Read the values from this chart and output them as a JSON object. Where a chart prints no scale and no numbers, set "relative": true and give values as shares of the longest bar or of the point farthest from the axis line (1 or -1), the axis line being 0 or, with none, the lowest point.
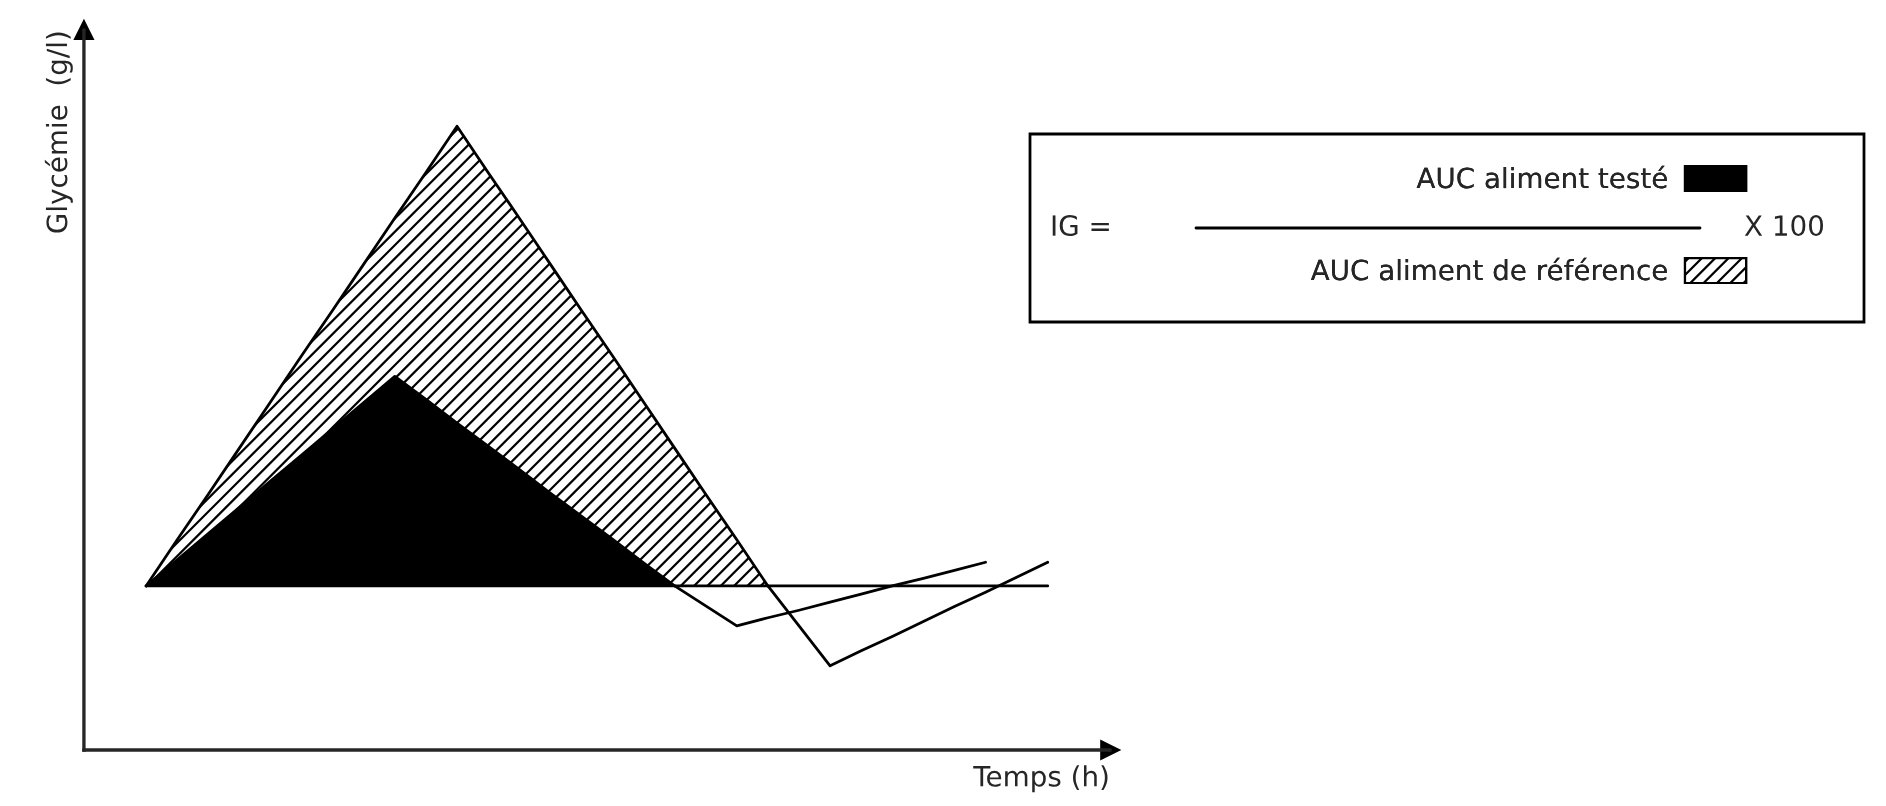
{
  "chart_data": {
    "type": "line",
    "relative": true,
    "xlabel": "Temps (h)",
    "ylabel": "Glycémie  (g/l)",
    "legend": "right",
    "categories": [
      null,
      null,
      null,
      null,
      null,
      null,
      null,
      null,
      null,
      null,
      null,
      null,
      null,
      null,
      null,
      null,
      null,
      null,
      null,
      null,
      null,
      null,
      null,
      null,
      null,
      null,
      null,
      null,
      null,
      null
    ],
    "annotations": [
      "IG =",
      "X 100"
    ],
    "series": [
      {
        "name": "AUC aliment de référence",
        "type": "area",
        "color": "#ffffff",
        "values": [
          0.263,
          0.337,
          0.41,
          0.484,
          0.558,
          0.632,
          0.705,
          0.779,
          0.853,
          0.926,
          1,
          0.926,
          0.853,
          0.779,
          0.705,
          0.632,
          0.558,
          0.484,
          0.41,
          0.337,
          0.263,
          null,
          null,
          null,
          null,
          null,
          null,
          null,
          null,
          null
        ]
      },
      {
        "name": "AUC aliment testé",
        "type": "area",
        "color": "#000000",
        "values": [
          0.263,
          0.305,
          0.347,
          0.389,
          0.431,
          0.473,
          0.515,
          0.557,
          0.599,
          0.562,
          0.524,
          0.487,
          0.45,
          0.412,
          0.375,
          0.338,
          0.3,
          0.263,
          null,
          null,
          null,
          null,
          null,
          null,
          null,
          null,
          null,
          null,
          null,
          null
        ]
      },
      {
        "color": "#000000",
        "values": [
          null,
          null,
          null,
          null,
          null,
          null,
          null,
          null,
          null,
          null,
          null,
          null,
          null,
          null,
          null,
          null,
          null,
          null,
          null,
          null,
          0.263,
          0.199,
          0.135,
          0.159,
          0.182,
          0.206,
          0.23,
          0.253,
          0.277,
          0.301
        ]
      },
      {
        "color": "#000000",
        "values": [
          null,
          null,
          null,
          null,
          null,
          null,
          null,
          null,
          null,
          null,
          null,
          null,
          null,
          null,
          null,
          null,
          null,
          0.263,
          0.231,
          0.199,
          0.212,
          0.224,
          0.237,
          0.25,
          0.263,
          0.275,
          0.288,
          0.301,
          null,
          null
        ]
      },
      {
        "color": "#000000",
        "values": [
          0.263,
          0.263,
          0.263,
          0.263,
          0.263,
          0.263,
          0.263,
          0.263,
          0.263,
          0.263,
          0.263,
          0.263,
          0.263,
          0.263,
          0.263,
          0.263,
          0.263,
          0.263,
          0.263,
          0.263,
          0.263,
          0.263,
          0.263,
          0.263,
          0.263,
          0.263,
          0.263,
          0.263,
          0.263,
          0.263
        ]
      }
    ]
  }
}
